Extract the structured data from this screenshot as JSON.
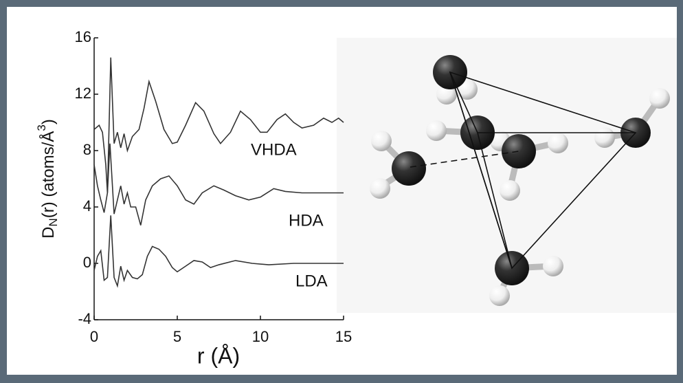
{
  "chart_data": {
    "type": "line",
    "xlabel": "r (Å)",
    "ylabel": {
      "base": "D",
      "sub": "N",
      "mid": "(r) (atoms/Å",
      "sup": "3",
      "end": ")"
    },
    "xlim": [
      0,
      15
    ],
    "xticks": [
      0,
      5,
      10,
      15
    ],
    "ylim": [
      -4,
      16
    ],
    "yticks": [
      -4,
      0,
      4,
      8,
      12,
      16
    ],
    "series": [
      {
        "name": "VHDA",
        "color": "#333333",
        "x": [
          0,
          0.3,
          0.5,
          0.7,
          0.8,
          1.0,
          1.2,
          1.4,
          1.6,
          1.8,
          2.0,
          2.3,
          2.7,
          3.0,
          3.3,
          3.7,
          4.2,
          4.7,
          5.0,
          5.5,
          6.1,
          6.6,
          7.2,
          7.6,
          8.2,
          8.8,
          9.4,
          10.0,
          10.4,
          11.0,
          11.5,
          12.0,
          12.5,
          13.2,
          13.8,
          14.3,
          14.7,
          15
        ],
        "values": [
          9.5,
          9.8,
          9.3,
          7,
          5,
          14.6,
          8.5,
          9.3,
          8.2,
          9.2,
          8.0,
          9.0,
          9.5,
          11,
          12.9,
          11.5,
          9.5,
          8.5,
          8.6,
          9.8,
          11.4,
          10.8,
          9.2,
          8.5,
          9.3,
          10.8,
          10.2,
          9.3,
          9.3,
          10.2,
          10.6,
          10.0,
          9.6,
          9.8,
          10.3,
          10.0,
          10.3,
          10.0
        ]
      },
      {
        "name": "HDA",
        "color": "#333333",
        "x": [
          0,
          0.2,
          0.4,
          0.6,
          0.8,
          0.95,
          1.2,
          1.4,
          1.6,
          1.8,
          2.0,
          2.2,
          2.5,
          2.8,
          3.1,
          3.5,
          4.0,
          4.5,
          5.0,
          5.5,
          6.0,
          6.5,
          7.2,
          7.8,
          8.5,
          9.3,
          10.0,
          10.8,
          11.5,
          12.5,
          15
        ],
        "values": [
          7,
          5.5,
          4.5,
          3.6,
          5,
          8.5,
          3.5,
          4.5,
          5.5,
          4.2,
          5.0,
          4.0,
          4.0,
          2.7,
          4.5,
          5.5,
          6.0,
          6.2,
          5.5,
          4.5,
          4.2,
          5.0,
          5.5,
          5.2,
          4.8,
          4.5,
          4.7,
          5.3,
          5.1,
          5.0,
          5.0
        ]
      },
      {
        "name": "LDA",
        "color": "#333333",
        "x": [
          0,
          0.2,
          0.4,
          0.6,
          0.8,
          1.0,
          1.2,
          1.4,
          1.6,
          1.8,
          2.0,
          2.3,
          2.6,
          2.9,
          3.2,
          3.5,
          3.9,
          4.3,
          4.7,
          5.0,
          5.5,
          6.0,
          6.5,
          7.0,
          7.5,
          8.5,
          9.5,
          10.5,
          12,
          15
        ],
        "values": [
          -0.5,
          0.5,
          0.9,
          -1.2,
          -1.0,
          3.4,
          -1.0,
          -1.6,
          -0.2,
          -1.2,
          -0.5,
          -1.0,
          -1.1,
          -0.8,
          0.5,
          1.2,
          1.0,
          0.5,
          -0.3,
          -0.6,
          -0.2,
          0.2,
          0.1,
          -0.3,
          -0.1,
          0.2,
          0.0,
          -0.1,
          0.0,
          0
        ]
      }
    ]
  }
}
